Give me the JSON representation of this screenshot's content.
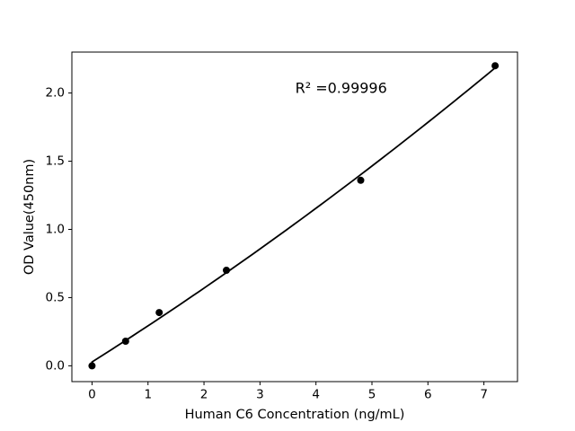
{
  "chart_data": {
    "type": "scatter",
    "xlabel": "Human C6 Concentration (ng/mL)",
    "ylabel": "OD Value(450nm)",
    "annotation": {
      "text": "R² =0.99996",
      "x": 4.45,
      "y": 2.03
    },
    "x": [
      0,
      0.6,
      1.2,
      2.4,
      4.8,
      7.2
    ],
    "y": [
      0.0,
      0.18,
      0.39,
      0.7,
      1.36,
      2.2
    ],
    "x_ticks": [
      0,
      1,
      2,
      3,
      4,
      5,
      6,
      7
    ],
    "x_tick_labels": [
      "0",
      "1",
      "2",
      "3",
      "4",
      "5",
      "6",
      "7"
    ],
    "y_ticks": [
      0.0,
      0.5,
      1.0,
      1.5,
      2.0
    ],
    "y_tick_labels": [
      "0.0",
      "0.5",
      "1.0",
      "1.5",
      "2.0"
    ],
    "xlim": [
      -0.36,
      7.6
    ],
    "ylim": [
      -0.116,
      2.3
    ],
    "grid": false,
    "legend": false,
    "fit_line": {
      "type": "quadratic",
      "coeffs": {
        "a": 0.00554,
        "b": 0.2596,
        "c": 0.0279
      },
      "x_start": 0,
      "x_end": 7.2
    },
    "colors": {
      "marker": "#000000",
      "line": "#000000",
      "axis": "#000000",
      "text": "#000000",
      "background": "#ffffff"
    }
  }
}
